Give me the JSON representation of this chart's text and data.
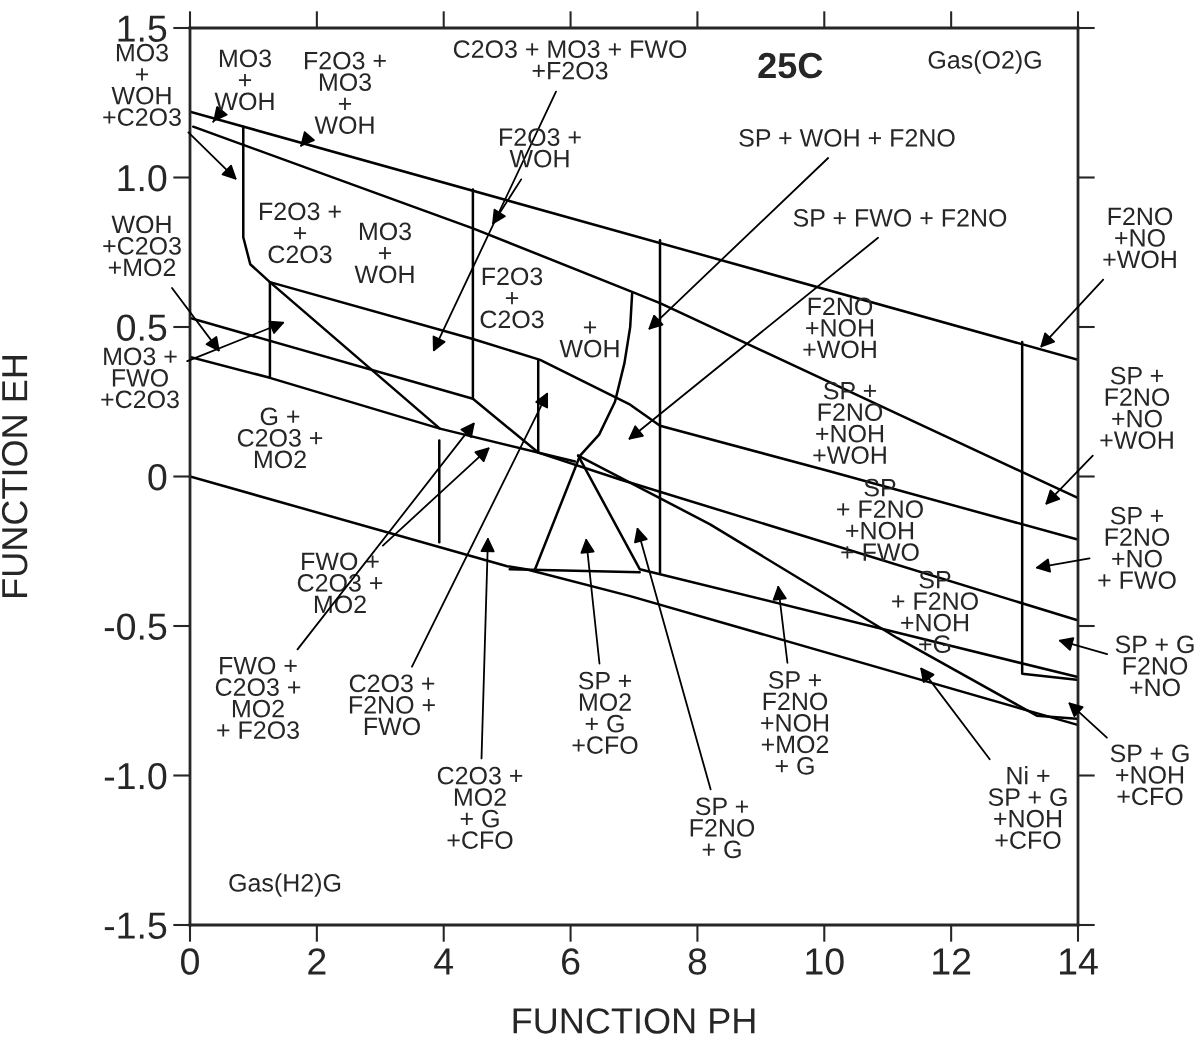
{
  "chart_data": {
    "type": "line",
    "title": "25C",
    "xlabel": "FUNCTION PH",
    "ylabel": "FUNCTION EH",
    "xlim": [
      0,
      14
    ],
    "xticks": [
      0,
      2,
      4,
      6,
      8,
      10,
      12,
      14
    ],
    "ylim": [
      -1.5,
      1.5
    ],
    "yticks": [
      {
        "value": -1.5,
        "label": "-1.5"
      },
      {
        "value": -1.0,
        "label": "-1.0"
      },
      -0.5,
      0,
      0.5,
      {
        "value": 1.0,
        "label": "1.0"
      },
      1.5
    ],
    "grid": false,
    "marker": "none",
    "line_style": "solid",
    "series": [
      {
        "color": "#000000",
        "x": [
          0,
          14
        ],
        "values": [
          1.22,
          0.39
        ]
      },
      {
        "color": "#000000",
        "x": [
          0.05,
          4.46,
          6.94,
          7.41,
          13.98
        ],
        "values": [
          1.17,
          0.83,
          0.62,
          0.58,
          -0.07
        ]
      },
      {
        "color": "#000000",
        "x": [
          0.84,
          0.84,
          0.95,
          1.26,
          4.46,
          5.52,
          6.94,
          7.41,
          10.04,
          13.98
        ],
        "values": [
          1.17,
          0.8,
          0.71,
          0.65,
          0.46,
          0.39,
          0.24,
          0.17,
          0.02,
          -0.21
        ]
      },
      {
        "color": "#000000",
        "x": [
          4.46,
          4.46
        ],
        "values": [
          0.96,
          0.26
        ]
      },
      {
        "color": "#000000",
        "x": [
          5.49,
          5.49
        ],
        "values": [
          0.39,
          0.08
        ]
      },
      {
        "color": "#000000",
        "x": [
          1.26,
          1.26
        ],
        "values": [
          0.65,
          0.33
        ]
      },
      {
        "color": "#000000",
        "x": [
          1.26,
          3.94
        ],
        "values": [
          0.65,
          0.16
        ]
      },
      {
        "color": "#000000",
        "x": [
          0,
          4.46,
          5.49,
          6.78,
          13.98
        ],
        "values": [
          0.53,
          0.26,
          0.08,
          -0.01,
          -0.48
        ]
      },
      {
        "color": "#000000",
        "x": [
          0,
          1.26,
          3.94,
          6.07
        ],
        "values": [
          0.4,
          0.33,
          0.16,
          0.05
        ]
      },
      {
        "color": "#000000",
        "x": [
          6.97,
          6.94,
          6.85,
          6.7,
          6.45,
          6.15,
          5.44
        ],
        "values": [
          0.61,
          0.5,
          0.38,
          0.25,
          0.14,
          0.07,
          -0.31
        ]
      },
      {
        "color": "#000000",
        "x": [
          6.12,
          7.09,
          13.98
        ],
        "values": [
          0.07,
          -0.31,
          -0.67
        ]
      },
      {
        "color": "#000000",
        "x": [
          5.04,
          7.09
        ],
        "values": [
          -0.31,
          -0.32
        ]
      },
      {
        "color": "#000000",
        "x": [
          6.12,
          8.2,
          11.15,
          13.35,
          13.98
        ],
        "values": [
          0.07,
          -0.16,
          -0.54,
          -0.8,
          -0.81
        ]
      },
      {
        "color": "#000000",
        "x": [
          0,
          5.0,
          5.3,
          6.94,
          13.98
        ],
        "values": [
          0,
          -0.3,
          -0.31,
          -0.4,
          -0.83
        ]
      },
      {
        "color": "#000000",
        "x": [
          3.93,
          3.93
        ],
        "values": [
          0.12,
          -0.22
        ]
      },
      {
        "color": "#000000",
        "x": [
          7.41,
          7.41
        ],
        "values": [
          0.79,
          -0.32
        ]
      },
      {
        "color": "#000000",
        "x": [
          13.12,
          13.12,
          13.98
        ],
        "values": [
          0.45,
          -0.66,
          -0.68
        ]
      }
    ],
    "annotations": [
      "MO3\n+\nWOH\n+C2O3",
      "MO3\n+\nWOH",
      "F2O3 +\nMO3\n+\nWOH",
      "C2O3 + MO3 + FWO\n+F2O3",
      "Gas(O2)G",
      "F2O3 +\nWOH",
      "SP + WOH + F2NO",
      "SP + FWO + F2NO",
      "WOH\n+C2O3\n+MO2",
      "F2O3 +\n+\nC2O3",
      "MO3\n+\nWOH",
      "F2O3\n+\nC2O3",
      "+\nWOH",
      "F2NO\n+NOH\n+WOH",
      "MO3 +\nFWO\n+C2O3",
      "G +\nC2O3 +\nMO2",
      "SP +\nF2NO\n+NOH\n+WOH",
      "SP\n+ F2NO\n+NOH\n+ FWO",
      "SP\n+ F2NO\n+NOH\n+G",
      "FWO +\nC2O3 +\nMO2",
      "FWO +\nC2O3 +\nMO2\n+ F2O3",
      "C2O3 +\nF2NO +\nFWO",
      "C2O3 +\nMO2\n+ G\n+CFO",
      "SP +\nMO2\n+ G\n+CFO",
      "SP +\nF2NO\n+NOH\n+MO2\n+ G",
      "SP +\nF2NO\n+ G",
      "Ni +\nSP + G\n+NOH\n+CFO",
      "Gas(H2)G",
      {
        "text": "F2NO\n+NO\n+WOH",
        "x": 13.4,
        "y": 0.43
      },
      "SP +\nF2NO\n+NO\n+WOH",
      "SP +\nF2NO\n+NO\n+ FWO",
      "SP + G\nF2NO\n+NO",
      "SP + G\n+NOH\n+CFO"
    ]
  }
}
